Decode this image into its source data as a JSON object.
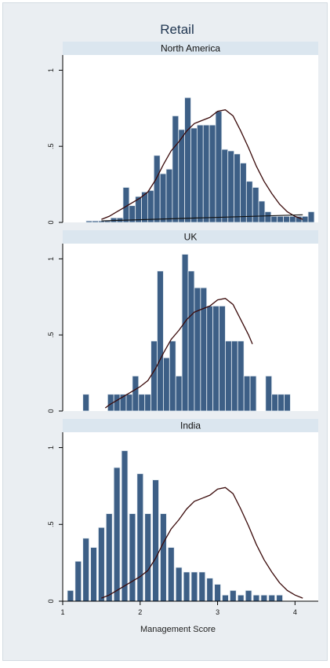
{
  "chart_data": {
    "type": "histogram",
    "title": "Retail",
    "xlabel": "Management Score",
    "xlim": [
      1,
      4.3
    ],
    "ylim": [
      0,
      1.1
    ],
    "x_ticks": [
      "1",
      "2",
      "3",
      "4"
    ],
    "y_ticks": [
      "0",
      ".5",
      "1"
    ],
    "series_kind": [
      "density histogram",
      "kernel density line"
    ],
    "colors": {
      "bar": "#3d5f86",
      "bar_edge": "#e6edf3",
      "kde": "#3a0a0a",
      "header_bg": "#dbe6ef",
      "outer_bg": "#eaeef2"
    },
    "panels": [
      {
        "name": "North America",
        "bars": [
          {
            "x": 1.341,
            "y": 0.01
          },
          {
            "x": 1.42,
            "y": 0.01
          },
          {
            "x": 1.5,
            "y": 0.01
          },
          {
            "x": 1.58,
            "y": 0.01
          },
          {
            "x": 1.659,
            "y": 0.03
          },
          {
            "x": 1.739,
            "y": 0.03
          },
          {
            "x": 1.819,
            "y": 0.23
          },
          {
            "x": 1.898,
            "y": 0.11
          },
          {
            "x": 1.978,
            "y": 0.17
          },
          {
            "x": 2.058,
            "y": 0.2
          },
          {
            "x": 2.137,
            "y": 0.21
          },
          {
            "x": 2.217,
            "y": 0.44
          },
          {
            "x": 2.297,
            "y": 0.32
          },
          {
            "x": 2.376,
            "y": 0.35
          },
          {
            "x": 2.456,
            "y": 0.7
          },
          {
            "x": 2.536,
            "y": 0.61
          },
          {
            "x": 2.615,
            "y": 0.82
          },
          {
            "x": 2.695,
            "y": 0.62
          },
          {
            "x": 2.775,
            "y": 0.64
          },
          {
            "x": 2.854,
            "y": 0.64
          },
          {
            "x": 2.934,
            "y": 0.64
          },
          {
            "x": 3.014,
            "y": 0.73
          },
          {
            "x": 3.093,
            "y": 0.48
          },
          {
            "x": 3.173,
            "y": 0.47
          },
          {
            "x": 3.253,
            "y": 0.45
          },
          {
            "x": 3.332,
            "y": 0.39
          },
          {
            "x": 3.412,
            "y": 0.27
          },
          {
            "x": 3.492,
            "y": 0.23
          },
          {
            "x": 3.571,
            "y": 0.14
          },
          {
            "x": 3.651,
            "y": 0.07
          },
          {
            "x": 3.731,
            "y": 0.04
          },
          {
            "x": 3.81,
            "y": 0.04
          },
          {
            "x": 3.89,
            "y": 0.04
          },
          {
            "x": 3.97,
            "y": 0.04
          },
          {
            "x": 4.049,
            "y": 0.04
          },
          {
            "x": 4.129,
            "y": 0.04
          },
          {
            "x": 4.209,
            "y": 0.07
          }
        ],
        "kde": [
          {
            "x": 1.5,
            "y": 0.02
          },
          {
            "x": 1.6,
            "y": 0.04
          },
          {
            "x": 1.7,
            "y": 0.07
          },
          {
            "x": 1.8,
            "y": 0.1
          },
          {
            "x": 1.9,
            "y": 0.13
          },
          {
            "x": 2.0,
            "y": 0.16
          },
          {
            "x": 2.1,
            "y": 0.2
          },
          {
            "x": 2.2,
            "y": 0.28
          },
          {
            "x": 2.3,
            "y": 0.38
          },
          {
            "x": 2.4,
            "y": 0.47
          },
          {
            "x": 2.5,
            "y": 0.53
          },
          {
            "x": 2.6,
            "y": 0.6
          },
          {
            "x": 2.7,
            "y": 0.65
          },
          {
            "x": 2.8,
            "y": 0.67
          },
          {
            "x": 2.9,
            "y": 0.69
          },
          {
            "x": 3.0,
            "y": 0.73
          },
          {
            "x": 3.1,
            "y": 0.74
          },
          {
            "x": 3.2,
            "y": 0.7
          },
          {
            "x": 3.3,
            "y": 0.6
          },
          {
            "x": 3.4,
            "y": 0.49
          },
          {
            "x": 3.5,
            "y": 0.37
          },
          {
            "x": 3.6,
            "y": 0.27
          },
          {
            "x": 3.7,
            "y": 0.19
          },
          {
            "x": 3.8,
            "y": 0.12
          },
          {
            "x": 3.9,
            "y": 0.07
          },
          {
            "x": 4.0,
            "y": 0.04
          },
          {
            "x": 4.1,
            "y": 0.02
          }
        ],
        "trend_line": [
          {
            "x": 1.5,
            "y": 0.01
          },
          {
            "x": 4.1,
            "y": 0.05
          }
        ]
      },
      {
        "name": "UK",
        "bars": [
          {
            "x": 1.3,
            "y": 0.11
          },
          {
            "x": 1.62,
            "y": 0.11
          },
          {
            "x": 1.7,
            "y": 0.11
          },
          {
            "x": 1.78,
            "y": 0.11
          },
          {
            "x": 1.86,
            "y": 0.11
          },
          {
            "x": 1.94,
            "y": 0.23
          },
          {
            "x": 2.02,
            "y": 0.11
          },
          {
            "x": 2.1,
            "y": 0.11
          },
          {
            "x": 2.18,
            "y": 0.46
          },
          {
            "x": 2.26,
            "y": 0.92
          },
          {
            "x": 2.34,
            "y": 0.35
          },
          {
            "x": 2.42,
            "y": 0.46
          },
          {
            "x": 2.5,
            "y": 0.23
          },
          {
            "x": 2.58,
            "y": 1.03
          },
          {
            "x": 2.66,
            "y": 0.92
          },
          {
            "x": 2.74,
            "y": 0.81
          },
          {
            "x": 2.82,
            "y": 0.81
          },
          {
            "x": 2.9,
            "y": 0.69
          },
          {
            "x": 2.98,
            "y": 0.69
          },
          {
            "x": 3.06,
            "y": 0.69
          },
          {
            "x": 3.14,
            "y": 0.46
          },
          {
            "x": 3.22,
            "y": 0.46
          },
          {
            "x": 3.3,
            "y": 0.46
          },
          {
            "x": 3.38,
            "y": 0.23
          },
          {
            "x": 3.46,
            "y": 0.23
          },
          {
            "x": 3.66,
            "y": 0.23
          },
          {
            "x": 3.74,
            "y": 0.11
          },
          {
            "x": 3.82,
            "y": 0.11
          },
          {
            "x": 3.9,
            "y": 0.11
          }
        ],
        "kde": [
          {
            "x": 1.55,
            "y": 0.02
          },
          {
            "x": 1.6,
            "y": 0.04
          },
          {
            "x": 1.7,
            "y": 0.07
          },
          {
            "x": 1.8,
            "y": 0.1
          },
          {
            "x": 1.9,
            "y": 0.13
          },
          {
            "x": 2.0,
            "y": 0.16
          },
          {
            "x": 2.1,
            "y": 0.2
          },
          {
            "x": 2.2,
            "y": 0.28
          },
          {
            "x": 2.3,
            "y": 0.38
          },
          {
            "x": 2.4,
            "y": 0.47
          },
          {
            "x": 2.5,
            "y": 0.53
          },
          {
            "x": 2.6,
            "y": 0.6
          },
          {
            "x": 2.7,
            "y": 0.65
          },
          {
            "x": 2.8,
            "y": 0.67
          },
          {
            "x": 2.9,
            "y": 0.69
          },
          {
            "x": 3.0,
            "y": 0.73
          },
          {
            "x": 3.1,
            "y": 0.74
          },
          {
            "x": 3.2,
            "y": 0.7
          },
          {
            "x": 3.3,
            "y": 0.6
          },
          {
            "x": 3.4,
            "y": 0.5
          },
          {
            "x": 3.45,
            "y": 0.44
          }
        ]
      },
      {
        "name": "India",
        "bars": [
          {
            "x": 1.1,
            "y": 0.07
          },
          {
            "x": 1.2,
            "y": 0.26
          },
          {
            "x": 1.3,
            "y": 0.41
          },
          {
            "x": 1.4,
            "y": 0.35
          },
          {
            "x": 1.5,
            "y": 0.48
          },
          {
            "x": 1.6,
            "y": 0.57
          },
          {
            "x": 1.7,
            "y": 0.87
          },
          {
            "x": 1.8,
            "y": 0.98
          },
          {
            "x": 1.9,
            "y": 0.57
          },
          {
            "x": 2.0,
            "y": 0.83
          },
          {
            "x": 2.1,
            "y": 0.57
          },
          {
            "x": 2.2,
            "y": 0.79
          },
          {
            "x": 2.3,
            "y": 0.57
          },
          {
            "x": 2.4,
            "y": 0.35
          },
          {
            "x": 2.5,
            "y": 0.22
          },
          {
            "x": 2.6,
            "y": 0.19
          },
          {
            "x": 2.7,
            "y": 0.19
          },
          {
            "x": 2.8,
            "y": 0.19
          },
          {
            "x": 2.9,
            "y": 0.15
          },
          {
            "x": 3.0,
            "y": 0.11
          },
          {
            "x": 3.1,
            "y": 0.04
          },
          {
            "x": 3.2,
            "y": 0.07
          },
          {
            "x": 3.3,
            "y": 0.04
          },
          {
            "x": 3.4,
            "y": 0.07
          },
          {
            "x": 3.5,
            "y": 0.04
          },
          {
            "x": 3.6,
            "y": 0.04
          },
          {
            "x": 3.7,
            "y": 0.04
          },
          {
            "x": 3.8,
            "y": 0.04
          }
        ],
        "kde": [
          {
            "x": 1.5,
            "y": 0.02
          },
          {
            "x": 1.6,
            "y": 0.04
          },
          {
            "x": 1.7,
            "y": 0.07
          },
          {
            "x": 1.8,
            "y": 0.1
          },
          {
            "x": 1.9,
            "y": 0.13
          },
          {
            "x": 2.0,
            "y": 0.16
          },
          {
            "x": 2.1,
            "y": 0.2
          },
          {
            "x": 2.2,
            "y": 0.28
          },
          {
            "x": 2.3,
            "y": 0.38
          },
          {
            "x": 2.4,
            "y": 0.47
          },
          {
            "x": 2.5,
            "y": 0.53
          },
          {
            "x": 2.6,
            "y": 0.6
          },
          {
            "x": 2.7,
            "y": 0.65
          },
          {
            "x": 2.8,
            "y": 0.67
          },
          {
            "x": 2.9,
            "y": 0.69
          },
          {
            "x": 3.0,
            "y": 0.73
          },
          {
            "x": 3.1,
            "y": 0.74
          },
          {
            "x": 3.2,
            "y": 0.7
          },
          {
            "x": 3.3,
            "y": 0.6
          },
          {
            "x": 3.4,
            "y": 0.49
          },
          {
            "x": 3.5,
            "y": 0.37
          },
          {
            "x": 3.6,
            "y": 0.27
          },
          {
            "x": 3.7,
            "y": 0.19
          },
          {
            "x": 3.8,
            "y": 0.12
          },
          {
            "x": 3.9,
            "y": 0.07
          },
          {
            "x": 4.0,
            "y": 0.04
          },
          {
            "x": 4.1,
            "y": 0.02
          }
        ]
      }
    ]
  }
}
